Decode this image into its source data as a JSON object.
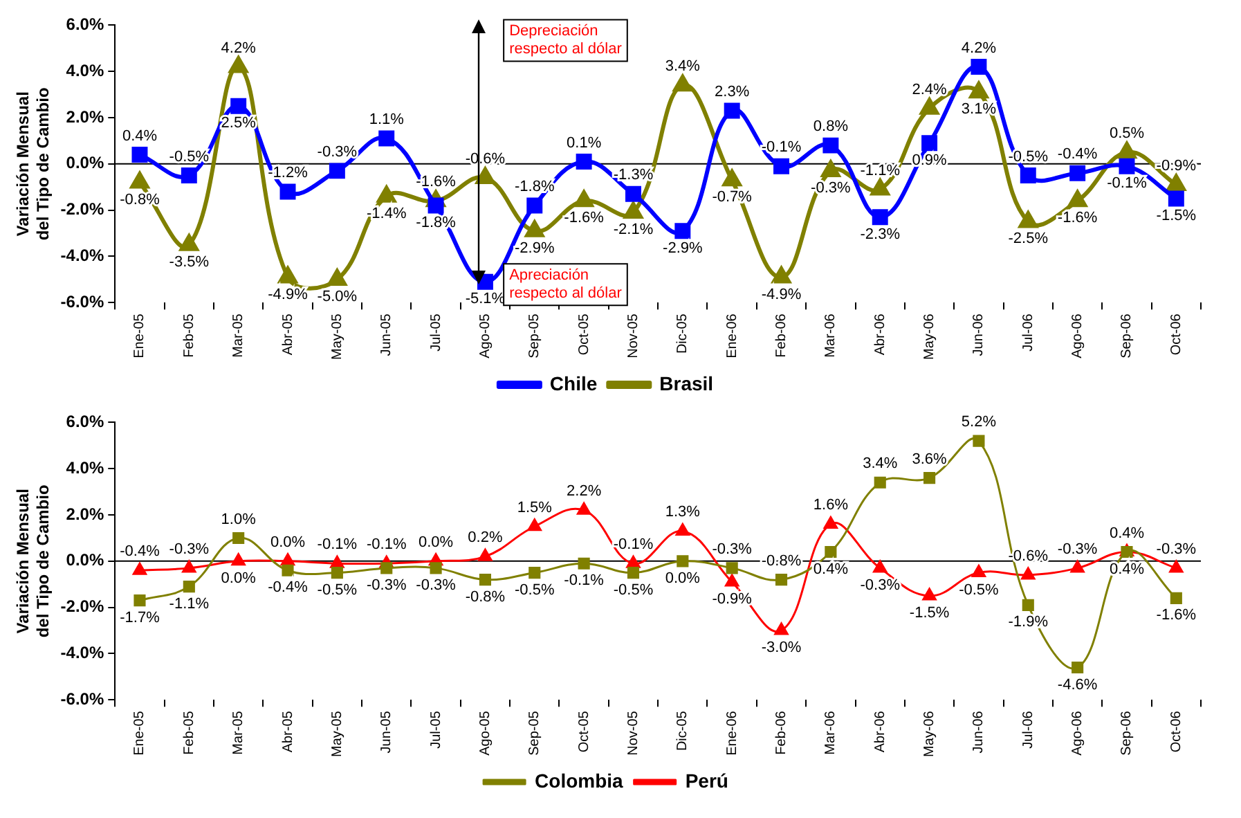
{
  "chart_data": [
    {
      "type": "line",
      "ylabel": "Variación Mensual del Tipo de Cambio",
      "categories": [
        "Ene-05",
        "Feb-05",
        "Mar-05",
        "Abr-05",
        "May-05",
        "Jun-05",
        "Jul-05",
        "Ago-05",
        "Sep-05",
        "Oct-05",
        "Nov-05",
        "Dic-05",
        "Ene-06",
        "Feb-06",
        "Mar-06",
        "Abr-06",
        "May-06",
        "Jun-06",
        "Jul-06",
        "Ago-06",
        "Sep-06",
        "Oct-06"
      ],
      "series": [
        {
          "name": "Chile",
          "color": "#0000ff",
          "marker": "square",
          "values": [
            0.4,
            -0.5,
            2.5,
            -1.2,
            -0.3,
            1.1,
            -1.8,
            -5.1,
            -1.8,
            0.1,
            -1.3,
            -2.9,
            2.3,
            -0.1,
            0.8,
            -2.3,
            0.9,
            4.2,
            -0.5,
            -0.4,
            -0.1,
            -1.5
          ],
          "value_labels": [
            "0.4%",
            "-0.5%",
            "2.5%",
            "-1.2%",
            "-0.3%",
            "1.1%",
            "-1.8%",
            "-5.1%",
            "-1.8%",
            "0.1%",
            "-1.3%",
            "-2.9%",
            "2.3%",
            "-0.1%",
            "0.8%",
            "-2.3%",
            "0.9%",
            "4.2%",
            "-0.5%",
            "-0.4%",
            "-0.1%",
            "-1.5%"
          ]
        },
        {
          "name": "Brasil",
          "color": "#808000",
          "marker": "triangle",
          "values": [
            -0.8,
            -3.5,
            4.2,
            -4.9,
            -5.0,
            -1.4,
            -1.6,
            -0.6,
            -2.9,
            -1.6,
            -2.1,
            3.4,
            -0.7,
            -4.9,
            -0.3,
            -1.1,
            2.4,
            3.1,
            -2.5,
            -1.6,
            0.5,
            -0.9
          ],
          "value_labels": [
            "-0.8%",
            "-3.5%",
            "4.2%",
            "-4.9%",
            "-5.0%",
            "-1.4%",
            "-1.6%",
            "-0.6%",
            "-2.9%",
            "-1.6%",
            "-2.1%",
            "3.4%",
            "-0.7%",
            "-4.9%",
            "-0.3%",
            "-1.1%",
            "2.4%",
            "3.1%",
            "-2.5%",
            "-1.6%",
            "0.5%",
            "-0.9%"
          ]
        }
      ],
      "ylim": [
        -6,
        6
      ],
      "yticks": [
        {
          "value": -6,
          "label": "-6.0%"
        },
        {
          "value": -4,
          "label": "-4.0%"
        },
        {
          "value": -2,
          "label": "-2.0%"
        },
        {
          "value": 0,
          "label": "0.0%"
        },
        {
          "value": 2,
          "label": "2.0%"
        },
        {
          "value": 4,
          "label": "4.0%"
        },
        {
          "value": 6,
          "label": "6.0%"
        }
      ],
      "ref_lines": [
        {
          "axis": "y",
          "value": 0
        }
      ],
      "legend": "bottom",
      "line_style": "solid",
      "annotations": [
        "Depreciación respecto al dólar",
        "Apreciación respecto al dólar"
      ]
    },
    {
      "type": "line",
      "ylabel": "Variación Mensual del Tipo de Cambio",
      "categories": [
        "Ene-05",
        "Feb-05",
        "Mar-05",
        "Abr-05",
        "May-05",
        "Jun-05",
        "Jul-05",
        "Ago-05",
        "Sep-05",
        "Oct-05",
        "Nov-05",
        "Dic-05",
        "Ene-06",
        "Feb-06",
        "Mar-06",
        "Abr-06",
        "May-06",
        "Jun-06",
        "Jul-06",
        "Ago-06",
        "Sep-06",
        "Oct-06"
      ],
      "series": [
        {
          "name": "Colombia",
          "color": "#808000",
          "marker": "square",
          "values": [
            -1.7,
            -1.1,
            1.0,
            -0.4,
            -0.5,
            -0.3,
            -0.3,
            -0.8,
            -0.5,
            -0.1,
            -0.5,
            0.0,
            -0.3,
            -0.8,
            0.4,
            3.4,
            3.6,
            5.2,
            -1.9,
            -4.6,
            0.4,
            -1.6
          ],
          "value_labels": [
            "-1.7%",
            "-1.1%",
            "1.0%",
            "-0.4%",
            "-0.5%",
            "-0.3%",
            "-0.3%",
            "-0.8%",
            "-0.5%",
            "-0.1%",
            "-0.5%",
            "0.0%",
            "-0.3%",
            "-0.8%",
            "0.4%",
            "3.4%",
            "3.6%",
            "5.2%",
            "-1.9%",
            "-4.6%",
            "0.4%",
            "-1.6%"
          ]
        },
        {
          "name": "Perú",
          "color": "#ff0000",
          "marker": "triangle",
          "values": [
            -0.4,
            -0.3,
            0.0,
            0.0,
            -0.1,
            -0.1,
            0.0,
            0.2,
            1.5,
            2.2,
            -0.1,
            1.3,
            -0.9,
            -3.0,
            1.6,
            -0.3,
            -1.5,
            -0.5,
            -0.6,
            -0.3,
            0.4,
            -0.3
          ],
          "value_labels": [
            "-0.4%",
            "-0.3%",
            "0.0%",
            "0.0%",
            "-0.1%",
            "-0.1%",
            "0.0%",
            "0.2%",
            "1.5%",
            "2.2%",
            "-0.1%",
            "1.3%",
            "-0.9%",
            "-3.0%",
            "1.6%",
            "-0.3%",
            "-1.5%",
            "-0.5%",
            "-0.6%",
            "-0.3%",
            "0.4%",
            "-0.3%"
          ]
        }
      ],
      "ylim": [
        -6,
        6
      ],
      "yticks": [
        {
          "value": -6,
          "label": "-6.0%"
        },
        {
          "value": -4,
          "label": "-4.0%"
        },
        {
          "value": -2,
          "label": "-2.0%"
        },
        {
          "value": 0,
          "label": "0.0%"
        },
        {
          "value": 2,
          "label": "2.0%"
        },
        {
          "value": 4,
          "label": "4.0%"
        },
        {
          "value": 6,
          "label": "6.0%"
        }
      ],
      "ref_lines": [
        {
          "axis": "y",
          "value": 0
        }
      ],
      "legend": "bottom",
      "line_style": "solid"
    }
  ]
}
